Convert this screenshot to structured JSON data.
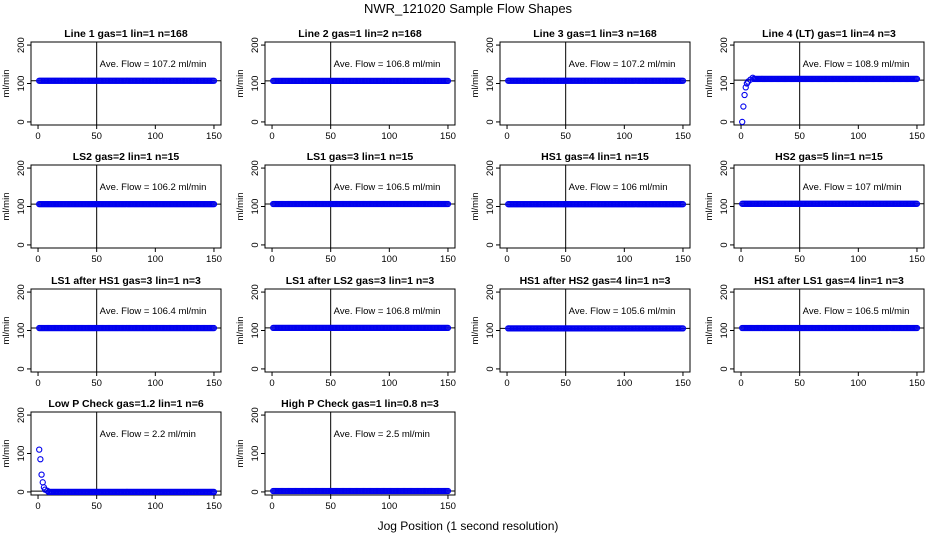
{
  "title": "NWR_121020  Sample Flow Shapes",
  "xlabel": "Jog Position (1 second resolution)",
  "chart_data": [
    {
      "type": "scatter",
      "title": "Line 1 gas=1 lin=1 n=168",
      "ylabel": "ml/min",
      "annotation": "Ave. Flow = 107.2  ml/min",
      "flow": 107.2,
      "xlim": [
        0,
        150
      ],
      "ylim": [
        0,
        200
      ],
      "xticks": [
        0,
        50,
        100,
        150
      ],
      "yticks": [
        0,
        100,
        200
      ],
      "vline": 50,
      "profile": "flat"
    },
    {
      "type": "scatter",
      "title": "Line 2 gas=1 lin=2 n=168",
      "ylabel": "ml/min",
      "annotation": "Ave. Flow = 106.8  ml/min",
      "flow": 106.8,
      "xlim": [
        0,
        150
      ],
      "ylim": [
        0,
        200
      ],
      "xticks": [
        0,
        50,
        100,
        150
      ],
      "yticks": [
        0,
        100,
        200
      ],
      "vline": 50,
      "profile": "flat"
    },
    {
      "type": "scatter",
      "title": "Line 3 gas=1 lin=3 n=168",
      "ylabel": "ml/min",
      "annotation": "Ave. Flow = 107.2  ml/min",
      "flow": 107.2,
      "xlim": [
        0,
        150
      ],
      "ylim": [
        0,
        200
      ],
      "xticks": [
        0,
        50,
        100,
        150
      ],
      "yticks": [
        0,
        100,
        200
      ],
      "vline": 50,
      "profile": "flat"
    },
    {
      "type": "scatter",
      "title": "Line 4 (LT) gas=1 lin=4 n=3",
      "ylabel": "ml/min",
      "annotation": "Ave. Flow = 108.9  ml/min",
      "flow": 108.9,
      "xlim": [
        0,
        150
      ],
      "ylim": [
        0,
        200
      ],
      "xticks": [
        0,
        50,
        100,
        150
      ],
      "yticks": [
        0,
        100,
        200
      ],
      "vline": 50,
      "profile": "rise",
      "early_points": [
        [
          1,
          0
        ],
        [
          2,
          40
        ],
        [
          3,
          70
        ],
        [
          4,
          90
        ],
        [
          5,
          100
        ],
        [
          6,
          105
        ],
        [
          8,
          110
        ],
        [
          10,
          115
        ]
      ]
    },
    {
      "type": "scatter",
      "title": "LS2 gas=2 lin=1 n=15",
      "ylabel": "ml/min",
      "annotation": "Ave. Flow = 106.2  ml/min",
      "flow": 106.2,
      "xlim": [
        0,
        150
      ],
      "ylim": [
        0,
        200
      ],
      "xticks": [
        0,
        50,
        100,
        150
      ],
      "yticks": [
        0,
        100,
        200
      ],
      "vline": 50,
      "profile": "flat"
    },
    {
      "type": "scatter",
      "title": "LS1 gas=3 lin=1 n=15",
      "ylabel": "ml/min",
      "annotation": "Ave. Flow = 106.5  ml/min",
      "flow": 106.5,
      "xlim": [
        0,
        150
      ],
      "ylim": [
        0,
        200
      ],
      "xticks": [
        0,
        50,
        100,
        150
      ],
      "yticks": [
        0,
        100,
        200
      ],
      "vline": 50,
      "profile": "flat"
    },
    {
      "type": "scatter",
      "title": "HS1 gas=4 lin=1 n=15",
      "ylabel": "ml/min",
      "annotation": "Ave. Flow = 106  ml/min",
      "flow": 106,
      "xlim": [
        0,
        150
      ],
      "ylim": [
        0,
        200
      ],
      "xticks": [
        0,
        50,
        100,
        150
      ],
      "yticks": [
        0,
        100,
        200
      ],
      "vline": 50,
      "profile": "flat"
    },
    {
      "type": "scatter",
      "title": "HS2 gas=5 lin=1 n=15",
      "ylabel": "ml/min",
      "annotation": "Ave. Flow = 107  ml/min",
      "flow": 107,
      "xlim": [
        0,
        150
      ],
      "ylim": [
        0,
        200
      ],
      "xticks": [
        0,
        50,
        100,
        150
      ],
      "yticks": [
        0,
        100,
        200
      ],
      "vline": 50,
      "profile": "flat"
    },
    {
      "type": "scatter",
      "title": "LS1 after HS1 gas=3 lin=1 n=3",
      "ylabel": "ml/min",
      "annotation": "Ave. Flow = 106.4  ml/min",
      "flow": 106.4,
      "xlim": [
        0,
        150
      ],
      "ylim": [
        0,
        200
      ],
      "xticks": [
        0,
        50,
        100,
        150
      ],
      "yticks": [
        0,
        100,
        200
      ],
      "vline": 50,
      "profile": "flat"
    },
    {
      "type": "scatter",
      "title": "LS1 after LS2 gas=3 lin=1 n=3",
      "ylabel": "ml/min",
      "annotation": "Ave. Flow = 106.8  ml/min",
      "flow": 106.8,
      "xlim": [
        0,
        150
      ],
      "ylim": [
        0,
        200
      ],
      "xticks": [
        0,
        50,
        100,
        150
      ],
      "yticks": [
        0,
        100,
        200
      ],
      "vline": 50,
      "profile": "flat"
    },
    {
      "type": "scatter",
      "title": "HS1 after HS2 gas=4 lin=1 n=3",
      "ylabel": "ml/min",
      "annotation": "Ave. Flow = 105.6  ml/min",
      "flow": 105.6,
      "xlim": [
        0,
        150
      ],
      "ylim": [
        0,
        200
      ],
      "xticks": [
        0,
        50,
        100,
        150
      ],
      "yticks": [
        0,
        100,
        200
      ],
      "vline": 50,
      "profile": "flat"
    },
    {
      "type": "scatter",
      "title": "HS1 after LS1 gas=4 lin=1 n=3",
      "ylabel": "ml/min",
      "annotation": "Ave. Flow = 106.5  ml/min",
      "flow": 106.5,
      "xlim": [
        0,
        150
      ],
      "ylim": [
        0,
        200
      ],
      "xticks": [
        0,
        50,
        100,
        150
      ],
      "yticks": [
        0,
        100,
        200
      ],
      "vline": 50,
      "profile": "flat"
    },
    {
      "type": "scatter",
      "title": "Low P Check gas=1.2 lin=1 n=6",
      "ylabel": "ml/min",
      "annotation": "Ave. Flow = 2.2  ml/min",
      "flow": 2.2,
      "xlim": [
        0,
        150
      ],
      "ylim": [
        0,
        200
      ],
      "xticks": [
        0,
        50,
        100,
        150
      ],
      "yticks": [
        0,
        100,
        200
      ],
      "vline": 50,
      "profile": "decay",
      "early_points": [
        [
          1,
          110
        ],
        [
          2,
          85
        ],
        [
          3,
          45
        ],
        [
          4,
          25
        ],
        [
          5,
          12
        ],
        [
          6,
          6
        ],
        [
          8,
          3
        ]
      ]
    },
    {
      "type": "scatter",
      "title": "High P Check gas=1 lin=0.8 n=3",
      "ylabel": "ml/min",
      "annotation": "Ave. Flow = 2.5  ml/min",
      "flow": 2.5,
      "xlim": [
        0,
        150
      ],
      "ylim": [
        0,
        200
      ],
      "xticks": [
        0,
        50,
        100,
        150
      ],
      "yticks": [
        0,
        100,
        200
      ],
      "vline": 50,
      "profile": "flat"
    }
  ],
  "colors": {
    "points": "#0000ee",
    "axes": "#000000"
  }
}
